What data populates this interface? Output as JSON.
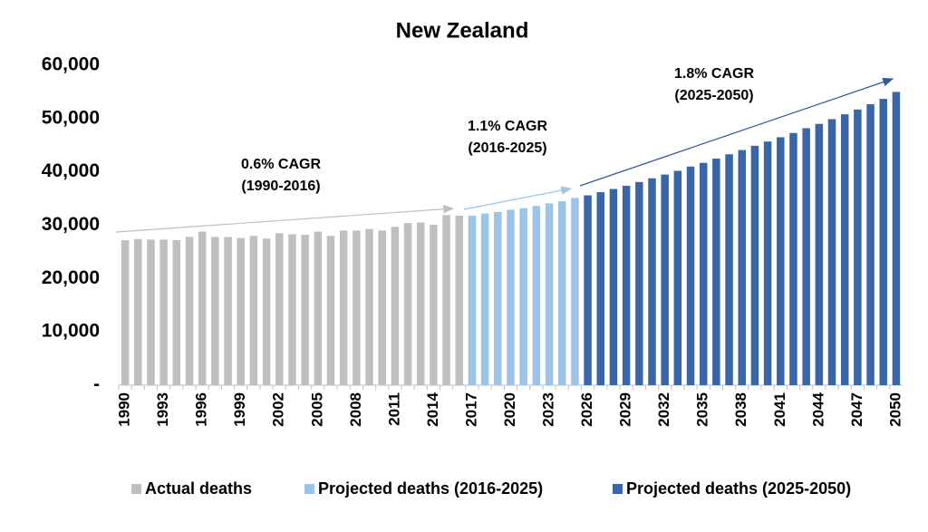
{
  "chart_data": {
    "type": "bar",
    "title": "New Zealand",
    "categories": [
      "1990",
      null,
      null,
      "1993",
      null,
      null,
      "1996",
      null,
      null,
      "1999",
      null,
      null,
      "2002",
      null,
      null,
      "2005",
      null,
      null,
      "2008",
      null,
      null,
      "2011",
      null,
      null,
      "2014",
      null,
      null,
      "2017",
      null,
      null,
      "2020",
      null,
      null,
      "2023",
      null,
      null,
      "2026",
      null,
      null,
      "2029",
      null,
      null,
      "2032",
      null,
      null,
      "2035",
      null,
      null,
      "2038",
      null,
      null,
      "2041",
      null,
      null,
      "2044",
      null,
      null,
      "2047",
      null,
      null,
      "2050"
    ],
    "series": [
      {
        "name": "Actual deaths",
        "color": "#bfbfbf",
        "values": [
          27200,
          27400,
          27300,
          27300,
          27200,
          27800,
          28800,
          27800,
          27800,
          27600,
          28000,
          27500,
          28500,
          28300,
          28200,
          28800,
          28000,
          29000,
          29000,
          29300,
          29000,
          29700,
          30400,
          30500,
          30100,
          31900,
          31800,
          null,
          null,
          null,
          null,
          null,
          null,
          null,
          null,
          null,
          null,
          null,
          null,
          null,
          null,
          null,
          null,
          null,
          null,
          null,
          null,
          null,
          null,
          null,
          null,
          null,
          null,
          null,
          null,
          null,
          null,
          null,
          null,
          null,
          null
        ]
      },
      {
        "name": "Projected deaths (2016-2025)",
        "color": "#9dc3e6",
        "values": [
          null,
          null,
          null,
          null,
          null,
          null,
          null,
          null,
          null,
          null,
          null,
          null,
          null,
          null,
          null,
          null,
          null,
          null,
          null,
          null,
          null,
          null,
          null,
          null,
          null,
          null,
          null,
          31800,
          32200,
          32500,
          32900,
          33200,
          33600,
          34100,
          34500,
          35100,
          null,
          null,
          null,
          null,
          null,
          null,
          null,
          null,
          null,
          null,
          null,
          null,
          null,
          null,
          null,
          null,
          null,
          null,
          null,
          null,
          null,
          null,
          null,
          null,
          null
        ]
      },
      {
        "name": "Projected deaths (2025-2050)",
        "color": "#3a66a8",
        "values": [
          null,
          null,
          null,
          null,
          null,
          null,
          null,
          null,
          null,
          null,
          null,
          null,
          null,
          null,
          null,
          null,
          null,
          null,
          null,
          null,
          null,
          null,
          null,
          null,
          null,
          null,
          null,
          null,
          null,
          null,
          null,
          null,
          null,
          null,
          null,
          null,
          35600,
          36200,
          36800,
          37400,
          38100,
          38800,
          39500,
          40200,
          41000,
          41700,
          42500,
          43300,
          44100,
          44900,
          45700,
          46500,
          47300,
          48200,
          49000,
          49900,
          50800,
          51700,
          52700,
          53700,
          55000
        ]
      }
    ],
    "ylim": [
      0,
      60000
    ],
    "yticks": [
      {
        "value": 0,
        "label": "-"
      },
      {
        "value": 10000,
        "label": "10,000"
      },
      {
        "value": 20000,
        "label": "20,000"
      },
      {
        "value": 30000,
        "label": "30,000"
      },
      {
        "value": 40000,
        "label": "40,000"
      },
      {
        "value": 50000,
        "label": "50,000"
      },
      {
        "value": 60000,
        "label": "60,000"
      }
    ],
    "annotations": [
      [
        "0.6% CAGR",
        "(1990-2016)"
      ],
      [
        "1.1% CAGR",
        "(2016-2025)"
      ],
      [
        "1.8% CAGR",
        "(2025-2050)"
      ]
    ],
    "legend": "bottom"
  }
}
